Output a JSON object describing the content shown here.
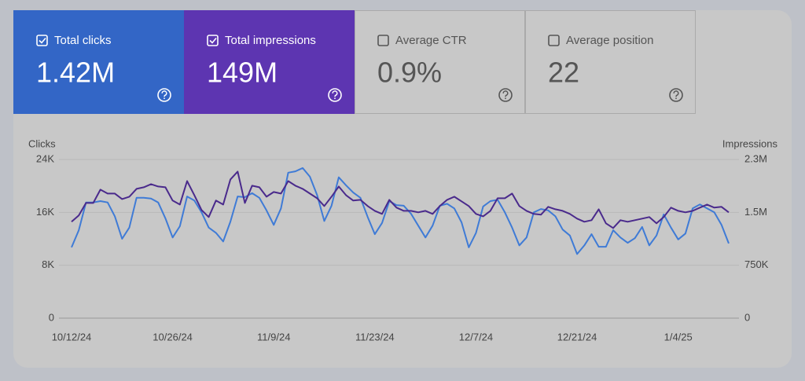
{
  "cards": [
    {
      "label": "Total clicks",
      "value": "1.42M",
      "checked": true,
      "color": "#3366c6"
    },
    {
      "label": "Total impressions",
      "value": "149M",
      "checked": true,
      "color": "#5d35b1"
    },
    {
      "label": "Average CTR",
      "value": "0.9%",
      "checked": false
    },
    {
      "label": "Average position",
      "value": "22",
      "checked": false
    }
  ],
  "chart_data": {
    "type": "line",
    "y_label": "Clicks",
    "y2_label": "Impressions",
    "categories": [
      "10/12/24",
      null,
      null,
      null,
      null,
      null,
      null,
      null,
      null,
      null,
      null,
      null,
      null,
      null,
      "10/26/24",
      null,
      null,
      null,
      null,
      null,
      null,
      null,
      null,
      null,
      null,
      null,
      null,
      null,
      "11/9/24",
      null,
      null,
      null,
      null,
      null,
      null,
      null,
      null,
      null,
      null,
      null,
      null,
      null,
      "11/23/24",
      null,
      null,
      null,
      null,
      null,
      null,
      null,
      null,
      null,
      null,
      null,
      null,
      null,
      "12/7/24",
      null,
      null,
      null,
      null,
      null,
      null,
      null,
      null,
      null,
      null,
      null,
      null,
      null,
      "12/21/24",
      null,
      null,
      null,
      null,
      null,
      null,
      null,
      null,
      null,
      null,
      null,
      null,
      null,
      "1/4/25",
      null,
      null,
      null,
      null,
      null,
      null,
      null
    ],
    "ylim": [
      0,
      24000
    ],
    "yticks": [
      0,
      {
        "value": 8000,
        "label": "8K"
      },
      {
        "value": 16000,
        "label": "16K"
      },
      {
        "value": 24000,
        "label": "24K"
      }
    ],
    "y2lim": [
      0,
      2250000
    ],
    "y2ticks": [
      0,
      {
        "value": 750000,
        "label": "750K"
      },
      {
        "value": 1500000,
        "label": "1.5M"
      },
      {
        "value": 2250000,
        "label": "2.3M"
      }
    ],
    "grid": true,
    "series": [
      {
        "name": "Clicks",
        "color": "#3f7bd6",
        "values": [
          10700,
          13300,
          17500,
          17500,
          17700,
          17500,
          15400,
          12000,
          13700,
          18200,
          18200,
          18100,
          17500,
          15100,
          12200,
          13900,
          18400,
          17800,
          16000,
          13700,
          12900,
          11600,
          14600,
          18400,
          18300,
          18900,
          18200,
          16300,
          14100,
          16600,
          22000,
          22200,
          22700,
          21400,
          18600,
          14700,
          17000,
          21300,
          20100,
          19000,
          18200,
          15300,
          12700,
          14400,
          17700,
          17100,
          17000,
          15800,
          14000,
          12200,
          14000,
          17000,
          17300,
          16600,
          14500,
          10700,
          12900,
          16900,
          17700,
          17900,
          16000,
          13700,
          11000,
          12200,
          16000,
          16500,
          16300,
          15400,
          13400,
          12500,
          9700,
          11000,
          12700,
          10800,
          10800,
          13300,
          12200,
          11400,
          12100,
          13800,
          11000,
          12500,
          15700,
          13700,
          11900,
          12800,
          16600,
          17200,
          16600,
          16000,
          14100,
          11300
        ]
      },
      {
        "name": "Impressions",
        "color": "#4a2a8c",
        "axis": "y2",
        "values": [
          1367000,
          1456000,
          1633000,
          1633000,
          1822000,
          1767000,
          1767000,
          1689000,
          1722000,
          1833000,
          1856000,
          1900000,
          1867000,
          1856000,
          1667000,
          1611000,
          1944000,
          1744000,
          1533000,
          1433000,
          1667000,
          1611000,
          1967000,
          2078000,
          1633000,
          1878000,
          1856000,
          1722000,
          1789000,
          1767000,
          1944000,
          1878000,
          1833000,
          1767000,
          1700000,
          1589000,
          1722000,
          1867000,
          1744000,
          1667000,
          1678000,
          1589000,
          1522000,
          1478000,
          1678000,
          1567000,
          1522000,
          1522000,
          1500000,
          1522000,
          1478000,
          1589000,
          1678000,
          1722000,
          1656000,
          1589000,
          1478000,
          1444000,
          1522000,
          1700000,
          1700000,
          1767000,
          1589000,
          1522000,
          1478000,
          1467000,
          1578000,
          1544000,
          1522000,
          1478000,
          1411000,
          1367000,
          1389000,
          1544000,
          1344000,
          1278000,
          1389000,
          1367000,
          1389000,
          1411000,
          1433000,
          1344000,
          1433000,
          1567000,
          1522000,
          1500000,
          1522000,
          1567000,
          1611000,
          1567000,
          1578000,
          1500000
        ]
      }
    ]
  }
}
